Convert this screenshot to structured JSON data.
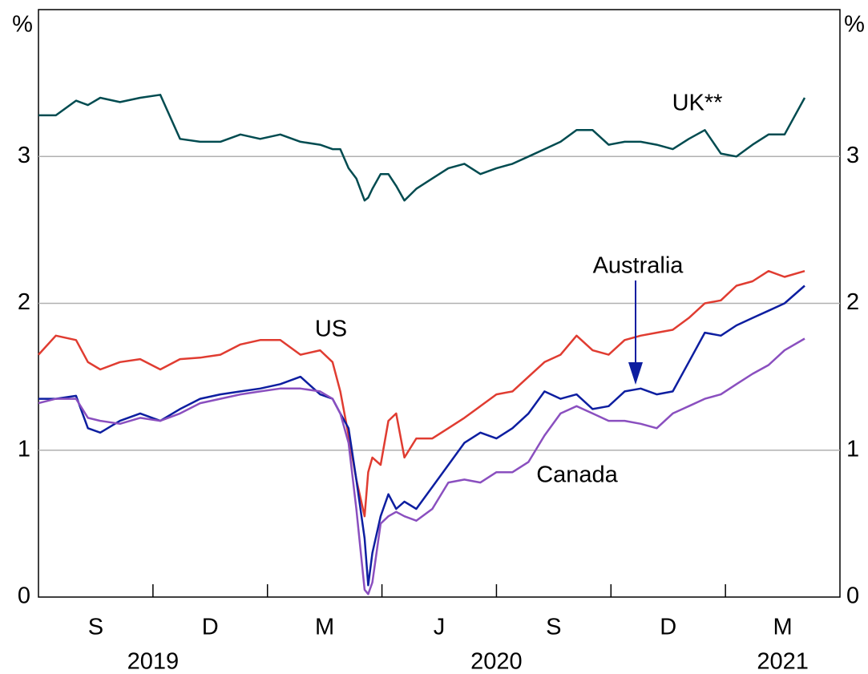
{
  "chart_data": {
    "type": "line",
    "ylabel": "%",
    "y2label": "%",
    "xlim": [
      2019.5,
      2021.25
    ],
    "xticks": [
      2019.75,
      2020,
      2020.25,
      2020.5,
      2020.75,
      2021
    ],
    "month_labels": [
      {
        "value": 2019.625,
        "label": "S"
      },
      {
        "value": 2019.875,
        "label": "D"
      },
      {
        "value": 2020.125,
        "label": "M"
      },
      {
        "value": 2020.375,
        "label": "J"
      },
      {
        "value": 2020.625,
        "label": "S"
      },
      {
        "value": 2020.875,
        "label": "D"
      },
      {
        "value": 2021.125,
        "label": "M"
      }
    ],
    "year_labels": [
      {
        "value": 2019.75,
        "label": "2019"
      },
      {
        "value": 2020.5,
        "label": "2020"
      },
      {
        "value": 2021.125,
        "label": "2021"
      }
    ],
    "ylim": [
      0,
      4
    ],
    "yticks": [
      0,
      1,
      2,
      3
    ],
    "y2lim": [
      0,
      4
    ],
    "y2ticks": [
      0,
      1,
      2,
      3
    ],
    "grid": true,
    "x": [
      2019.5,
      2019.538,
      2019.582,
      2019.608,
      2019.635,
      2019.678,
      2019.722,
      2019.766,
      2019.809,
      2019.853,
      2019.897,
      2019.941,
      2019.984,
      2020.028,
      2020.072,
      2020.115,
      2020.142,
      2020.159,
      2020.177,
      2020.194,
      2020.212,
      2020.22,
      2020.229,
      2020.247,
      2020.264,
      2020.281,
      2020.299,
      2020.325,
      2020.36,
      2020.395,
      2020.43,
      2020.465,
      2020.5,
      2020.535,
      2020.57,
      2020.605,
      2020.64,
      2020.675,
      2020.71,
      2020.745,
      2020.78,
      2020.815,
      2020.85,
      2020.885,
      2020.92,
      2020.955,
      2020.99,
      2021.024,
      2021.059,
      2021.094,
      2021.129,
      2021.173
    ],
    "series": [
      {
        "name": "UK**",
        "color": "#004b50",
        "values": [
          3.28,
          3.28,
          3.38,
          3.35,
          3.4,
          3.37,
          3.4,
          3.42,
          3.12,
          3.1,
          3.1,
          3.15,
          3.12,
          3.15,
          3.1,
          3.08,
          3.05,
          3.05,
          2.92,
          2.85,
          2.7,
          2.72,
          2.78,
          2.88,
          2.88,
          2.8,
          2.7,
          2.78,
          2.85,
          2.92,
          2.95,
          2.88,
          2.92,
          2.95,
          3.0,
          3.05,
          3.1,
          3.18,
          3.18,
          3.08,
          3.1,
          3.1,
          3.08,
          3.05,
          3.12,
          3.18,
          3.02,
          3.0,
          3.08,
          3.15,
          3.15,
          3.4
        ]
      },
      {
        "name": "US",
        "color": "#e03c31",
        "values": [
          1.65,
          1.78,
          1.75,
          1.6,
          1.55,
          1.6,
          1.62,
          1.55,
          1.62,
          1.63,
          1.65,
          1.72,
          1.75,
          1.75,
          1.65,
          1.68,
          1.6,
          1.4,
          1.1,
          0.8,
          0.55,
          0.85,
          0.95,
          0.9,
          1.2,
          1.25,
          0.95,
          1.08,
          1.08,
          1.15,
          1.22,
          1.3,
          1.38,
          1.4,
          1.5,
          1.6,
          1.65,
          1.78,
          1.68,
          1.65,
          1.75,
          1.78,
          1.8,
          1.82,
          1.9,
          2.0,
          2.02,
          2.12,
          2.15,
          2.22,
          2.18,
          2.22
        ]
      },
      {
        "name": "Australia",
        "color": "#0d1ea0",
        "values": [
          1.35,
          1.35,
          1.37,
          1.15,
          1.12,
          1.2,
          1.25,
          1.2,
          1.28,
          1.35,
          1.38,
          1.4,
          1.42,
          1.45,
          1.5,
          1.38,
          1.35,
          1.25,
          1.15,
          0.8,
          0.4,
          0.08,
          0.3,
          0.55,
          0.7,
          0.6,
          0.65,
          0.6,
          0.75,
          0.9,
          1.05,
          1.12,
          1.08,
          1.15,
          1.25,
          1.4,
          1.35,
          1.38,
          1.28,
          1.3,
          1.4,
          1.42,
          1.38,
          1.4,
          1.6,
          1.8,
          1.78,
          1.85,
          1.9,
          1.95,
          2.0,
          2.12
        ]
      },
      {
        "name": "Canada",
        "color": "#8a4fbf",
        "values": [
          1.32,
          1.35,
          1.35,
          1.22,
          1.2,
          1.18,
          1.22,
          1.2,
          1.25,
          1.32,
          1.35,
          1.38,
          1.4,
          1.42,
          1.42,
          1.4,
          1.35,
          1.25,
          1.05,
          0.6,
          0.05,
          0.02,
          0.1,
          0.5,
          0.55,
          0.58,
          0.55,
          0.52,
          0.6,
          0.78,
          0.8,
          0.78,
          0.85,
          0.85,
          0.92,
          1.1,
          1.25,
          1.3,
          1.25,
          1.2,
          1.2,
          1.18,
          1.15,
          1.25,
          1.3,
          1.35,
          1.38,
          1.45,
          1.52,
          1.58,
          1.68,
          1.76
        ]
      }
    ]
  }
}
